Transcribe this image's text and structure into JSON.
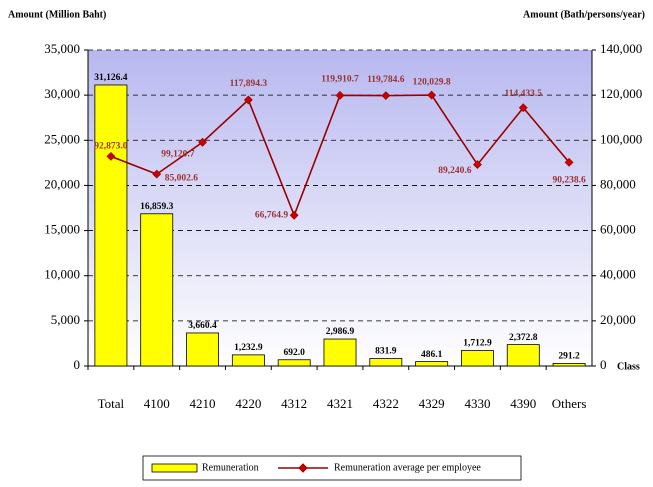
{
  "chart_data": {
    "type": "bar",
    "y_label": "Amount (Million Baht)",
    "y2_label": "Amount (Bath/persons/year)",
    "x_label": "Class",
    "categories": [
      "Total",
      "4100",
      "4210",
      "4220",
      "4312",
      "4321",
      "4322",
      "4329",
      "4330",
      "4390",
      "Others"
    ],
    "series": [
      {
        "name": "Remuneration",
        "color": "#ffff00",
        "values": [
          31126.4,
          16859.3,
          3660.4,
          1232.9,
          692.0,
          2986.9,
          831.9,
          486.1,
          1712.9,
          2372.8,
          291.2
        ],
        "value_labels": [
          "31,126.4",
          "16,859.3",
          "3,660.4",
          "1,232.9",
          "692.0",
          "2,986.9",
          "831.9",
          "486.1",
          "1,712.9",
          "2,372.8",
          "291.2"
        ]
      },
      {
        "name": "Remuneration average per employee",
        "color": "#990000",
        "type": "line",
        "axis": "y2",
        "values": [
          92873.0,
          85002.6,
          99120.7,
          117894.3,
          66764.9,
          119910.7,
          119784.6,
          120029.8,
          89240.6,
          114433.5,
          90238.6
        ],
        "value_labels": [
          "92,873.0",
          "85,002.6",
          "99,120.7",
          "117,894.3",
          "66,764.9",
          "119,910.7",
          "119,784.6",
          "120,029.8",
          "89,240.6",
          "114,433.5",
          "90,238.6"
        ]
      }
    ],
    "ylim": [
      0,
      35000
    ],
    "yticks": [
      0,
      {
        "value": 5000,
        "label": "5,000"
      },
      {
        "value": 10000,
        "label": "10,000"
      },
      {
        "value": 15000,
        "label": "15,000"
      },
      {
        "value": 20000,
        "label": "20,000"
      },
      {
        "value": 25000,
        "label": "25,000"
      },
      {
        "value": 30000,
        "label": "30,000"
      },
      {
        "value": 35000,
        "label": "35,000"
      }
    ],
    "y2lim": [
      0,
      140000
    ],
    "y2ticks": [
      0,
      {
        "value": 20000,
        "label": "20,000"
      },
      {
        "value": 40000,
        "label": "40,000"
      },
      {
        "value": 60000,
        "label": "60,000"
      },
      {
        "value": 80000,
        "label": "80,000"
      },
      {
        "value": 100000,
        "label": "100,000"
      },
      {
        "value": 120000,
        "label": "120,000"
      },
      {
        "value": 140000,
        "label": "140,000"
      }
    ],
    "grid": true,
    "legend": "bottom"
  }
}
